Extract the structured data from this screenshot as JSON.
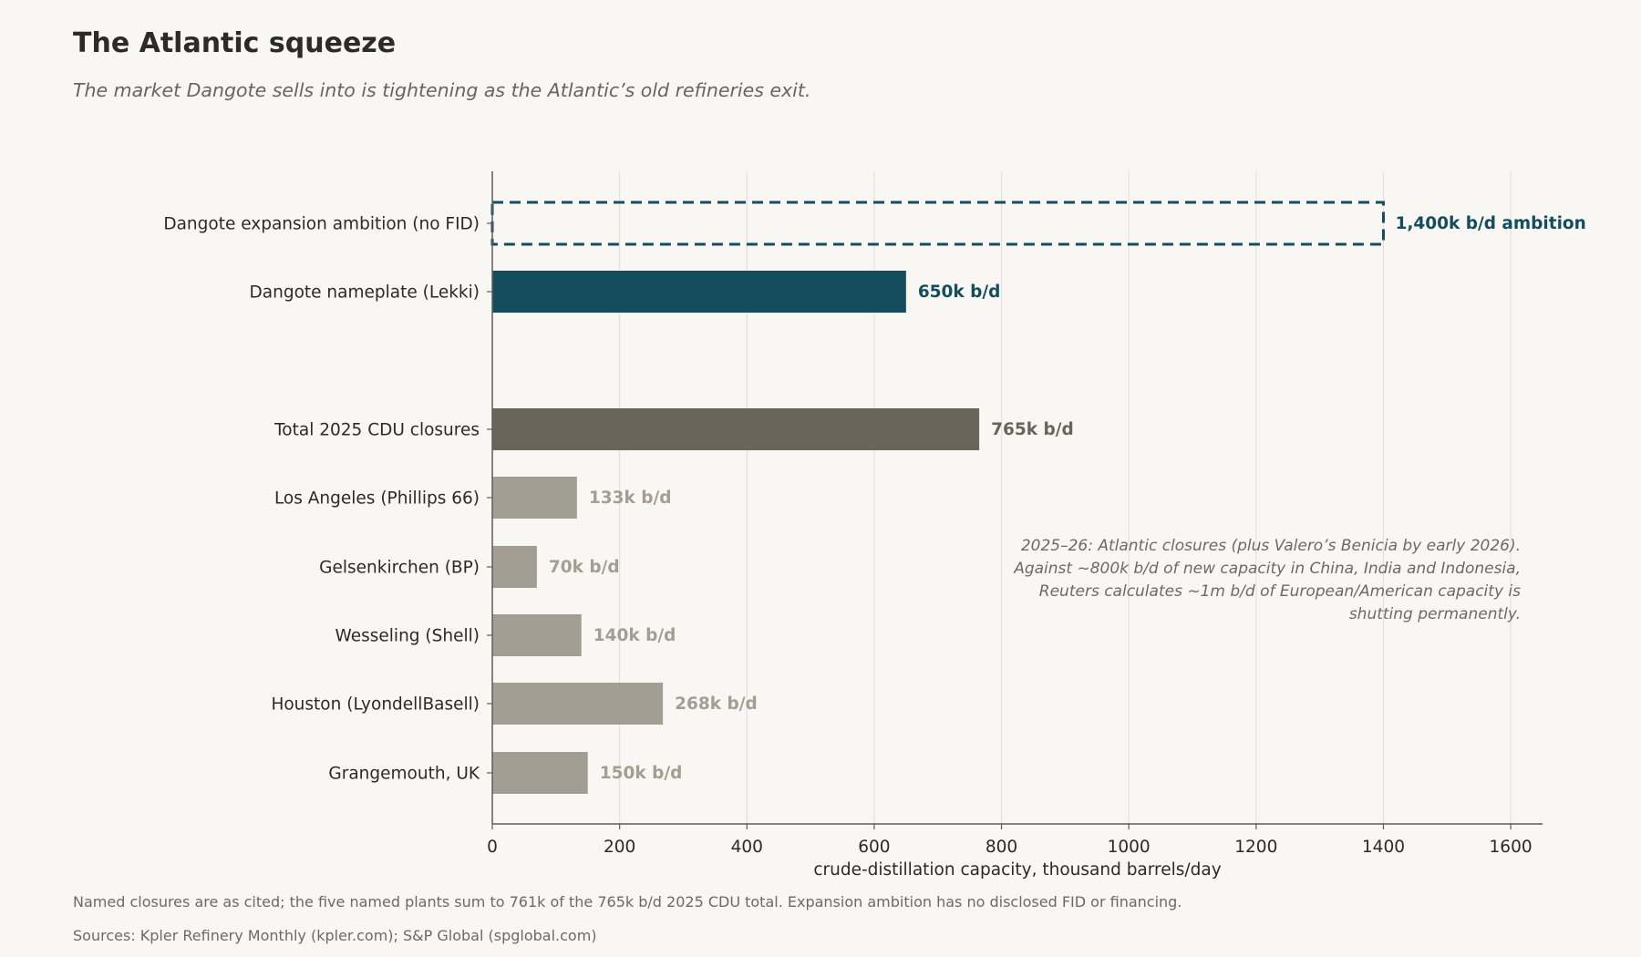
{
  "header": {
    "title": "The Atlantic squeeze",
    "subtitle": "The market Dangote sells into is tightening as the Atlantic’s old refineries exit."
  },
  "chart_data": {
    "type": "bar",
    "orientation": "horizontal",
    "xlabel": "crude-distillation capacity, thousand barrels/day",
    "ylabel": "",
    "xlim": [
      0,
      1650
    ],
    "xticks": [
      0,
      200,
      400,
      600,
      800,
      1000,
      1200,
      1400,
      1600
    ],
    "grid": "vertical",
    "bars": [
      {
        "category": "Dangote expansion ambition (no FID)",
        "value": 1400,
        "label": "1,400k b/d ambition",
        "style": "dashed-outline",
        "color": "#134d5e"
      },
      {
        "category": "Dangote nameplate (Lekki)",
        "value": 650,
        "label": "650k b/d",
        "style": "solid",
        "color": "#134d5e"
      },
      {
        "category": "Total 2025 CDU closures",
        "value": 765,
        "label": "765k b/d",
        "style": "solid",
        "color": "#6b6459"
      },
      {
        "category": "Los Angeles (Phillips 66)",
        "value": 133,
        "label": "133k b/d",
        "style": "solid",
        "color": "#a29e93"
      },
      {
        "category": "Gelsenkirchen (BP)",
        "value": 70,
        "label": "70k b/d",
        "style": "solid",
        "color": "#a29e93"
      },
      {
        "category": "Wesseling (Shell)",
        "value": 140,
        "label": "140k b/d",
        "style": "solid",
        "color": "#a29e93"
      },
      {
        "category": "Houston (LyondellBasell)",
        "value": 268,
        "label": "268k b/d",
        "style": "solid",
        "color": "#a29e93"
      },
      {
        "category": "Grangemouth, UK",
        "value": 150,
        "label": "150k b/d",
        "style": "solid",
        "color": "#a29e93"
      }
    ],
    "annotation": [
      "2025–26: Atlantic closures (plus Valero’s Benicia by early 2026).",
      "Against ~800k b/d of new capacity in China, India and Indonesia,",
      "Reuters calculates ~1m b/d of European/American capacity is",
      "shutting permanently."
    ]
  },
  "footer": {
    "note": "Named closures are as cited; the five named plants sum to 761k of the 765k b/d 2025 CDU total. Expansion ambition has no disclosed FID or financing.",
    "source": "Sources: Kpler Refinery Monthly (kpler.com); S&P Global (spglobal.com)"
  },
  "colors": {
    "background": "#f9f7f3",
    "dangote": "#134d5e",
    "total": "#6b6459",
    "plant": "#a29e93",
    "grid": "#e4e1db",
    "axis": "#5d5d5d"
  }
}
